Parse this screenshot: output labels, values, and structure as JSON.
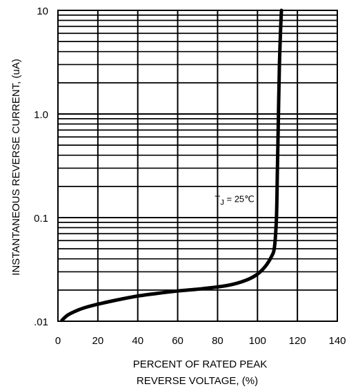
{
  "chart_data": {
    "type": "line",
    "xlabel_lines": [
      "PERCENT OF RATED PEAK",
      "REVERSE VOLTAGE, (%)"
    ],
    "ylabel": "INSTANTANEOUS REVERSE CURRENT, (uA)",
    "xlim": [
      0,
      140
    ],
    "ylim": [
      0.01,
      10
    ],
    "y_scale": "log",
    "x_ticks": [
      0,
      20,
      40,
      60,
      80,
      100,
      120,
      140
    ],
    "x_tick_labels": [
      "0",
      "20",
      "40",
      "60",
      "80",
      "100",
      "120",
      "140"
    ],
    "y_ticks": [
      0.01,
      0.1,
      1,
      10
    ],
    "y_tick_labels": [
      ".01",
      "0.1",
      "1.0",
      "10"
    ],
    "grid": true,
    "annotation": {
      "main": "T",
      "sub": "J",
      "rest": " = 25℃",
      "x": 80,
      "y": 0.15
    },
    "series": [
      {
        "x": [
          2,
          5,
          10,
          15,
          20,
          30,
          40,
          50,
          60,
          70,
          80,
          88,
          95,
          100,
          104,
          107,
          108.5,
          109.5,
          110,
          110.5,
          111,
          111.5,
          112
        ],
        "y": [
          0.0102,
          0.0115,
          0.0128,
          0.0138,
          0.0146,
          0.0161,
          0.0175,
          0.0186,
          0.0196,
          0.0204,
          0.0214,
          0.0228,
          0.0252,
          0.0285,
          0.034,
          0.042,
          0.052,
          0.1,
          0.3,
          1.0,
          3.0,
          6.0,
          10
        ]
      }
    ]
  }
}
